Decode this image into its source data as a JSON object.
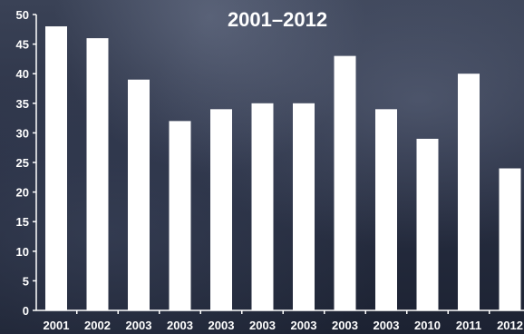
{
  "chart_data": {
    "type": "bar",
    "title": "2001–2012",
    "xlabel": "",
    "ylabel": "",
    "categories": [
      "2001",
      "2002",
      "2003",
      "2003",
      "2003",
      "2003",
      "2003",
      "2003",
      "2003",
      "2010",
      "2011",
      "2012"
    ],
    "values": [
      48,
      46,
      39,
      32,
      34,
      35,
      35,
      43,
      34,
      29,
      40,
      24
    ],
    "ylim": [
      0,
      50
    ],
    "yticks": [
      0,
      5,
      10,
      15,
      20,
      25,
      30,
      35,
      40,
      45,
      50
    ],
    "grid": false,
    "colors": {
      "bar": "#ffffff",
      "text": "#ffffff",
      "background": "#2a3145"
    }
  }
}
